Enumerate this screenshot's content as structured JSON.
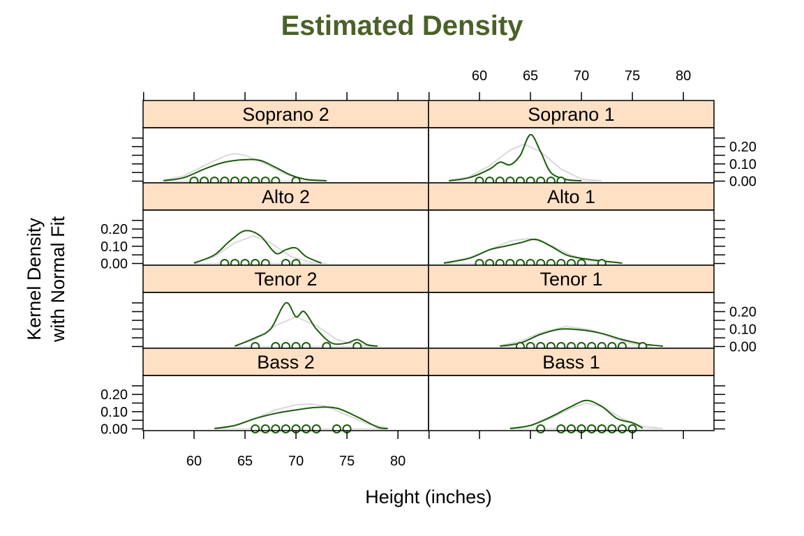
{
  "title": "Estimated Density",
  "xlabel": "Height (inches)",
  "ylabel_line1": "Kernel Density",
  "ylabel_line2": "with Normal Fit",
  "colors": {
    "title": "#4a6129",
    "density": "#1a5c0a",
    "normal": "#d9d9d9",
    "points": "#1a5c0a",
    "strip": "#ffe0c4"
  },
  "chart_data": {
    "type": "line",
    "title": "Estimated Density",
    "xlabel": "Height (inches)",
    "ylabel": "Kernel Density with Normal Fit",
    "xlim": [
      55,
      83
    ],
    "ylim": [
      0,
      0.3
    ],
    "x_ticks": [
      60,
      65,
      70,
      75,
      80
    ],
    "y_ticks": [
      0.0,
      0.1,
      0.2
    ],
    "y_tick_labels": [
      "0.00",
      "0.10",
      "0.20"
    ],
    "panels": [
      {
        "name": "Soprano 2",
        "points": [
          60,
          61,
          62,
          63,
          64,
          65,
          66,
          67,
          68,
          70
        ],
        "density": [
          [
            57,
            0.003
          ],
          [
            59,
            0.02
          ],
          [
            61,
            0.07
          ],
          [
            63,
            0.11
          ],
          [
            65,
            0.125
          ],
          [
            66.5,
            0.12
          ],
          [
            68,
            0.08
          ],
          [
            69.5,
            0.035
          ],
          [
            71,
            0.01
          ],
          [
            73,
            0.002
          ]
        ],
        "normal": [
          [
            57,
            0.006
          ],
          [
            59,
            0.03
          ],
          [
            61,
            0.09
          ],
          [
            63,
            0.145
          ],
          [
            64,
            0.16
          ],
          [
            65,
            0.15
          ],
          [
            67,
            0.1
          ],
          [
            69,
            0.04
          ],
          [
            71,
            0.01
          ],
          [
            73,
            0.002
          ]
        ]
      },
      {
        "name": "Soprano 1",
        "points": [
          60,
          61,
          62,
          63,
          64,
          65,
          66,
          67,
          68
        ],
        "density": [
          [
            57,
            0.002
          ],
          [
            59,
            0.02
          ],
          [
            61,
            0.07
          ],
          [
            62,
            0.11
          ],
          [
            63,
            0.095
          ],
          [
            64,
            0.15
          ],
          [
            65,
            0.27
          ],
          [
            66,
            0.17
          ],
          [
            67,
            0.05
          ],
          [
            68.5,
            0.01
          ],
          [
            70,
            0.002
          ]
        ],
        "normal": [
          [
            57,
            0.003
          ],
          [
            59,
            0.025
          ],
          [
            61,
            0.09
          ],
          [
            63,
            0.18
          ],
          [
            64.4,
            0.215
          ],
          [
            66,
            0.17
          ],
          [
            68,
            0.07
          ],
          [
            70,
            0.012
          ],
          [
            72,
            0.002
          ]
        ]
      },
      {
        "name": "Alto 2",
        "points": [
          63,
          64,
          65,
          66,
          67,
          69,
          70
        ],
        "density": [
          [
            60,
            0.002
          ],
          [
            62,
            0.05
          ],
          [
            63.5,
            0.13
          ],
          [
            65,
            0.19
          ],
          [
            66.5,
            0.16
          ],
          [
            68,
            0.06
          ],
          [
            69,
            0.08
          ],
          [
            70,
            0.09
          ],
          [
            71,
            0.04
          ],
          [
            72.5,
            0.002
          ]
        ],
        "normal": [
          [
            60,
            0.004
          ],
          [
            62,
            0.04
          ],
          [
            64,
            0.12
          ],
          [
            65.8,
            0.16
          ],
          [
            67.5,
            0.12
          ],
          [
            69.5,
            0.04
          ],
          [
            71.5,
            0.006
          ],
          [
            73,
            0.001
          ]
        ]
      },
      {
        "name": "Alto 1",
        "points": [
          60,
          61,
          62,
          63,
          64,
          65,
          66,
          67,
          68,
          69,
          70,
          72
        ],
        "density": [
          [
            56.5,
            0.002
          ],
          [
            59,
            0.03
          ],
          [
            61,
            0.08
          ],
          [
            62.5,
            0.1
          ],
          [
            64,
            0.12
          ],
          [
            65.5,
            0.14
          ],
          [
            67,
            0.1
          ],
          [
            68.5,
            0.05
          ],
          [
            70,
            0.03
          ],
          [
            72,
            0.015
          ],
          [
            74,
            0.002
          ]
        ],
        "normal": [
          [
            56.5,
            0.004
          ],
          [
            59,
            0.035
          ],
          [
            61,
            0.08
          ],
          [
            63,
            0.13
          ],
          [
            64.8,
            0.145
          ],
          [
            66.5,
            0.12
          ],
          [
            68.5,
            0.06
          ],
          [
            70.5,
            0.018
          ],
          [
            72.5,
            0.003
          ]
        ]
      },
      {
        "name": "Tenor 2",
        "points": [
          66,
          68,
          69,
          70,
          71,
          73,
          76
        ],
        "density": [
          [
            64,
            0.002
          ],
          [
            66,
            0.05
          ],
          [
            67.5,
            0.1
          ],
          [
            69,
            0.25
          ],
          [
            70,
            0.17
          ],
          [
            70.8,
            0.2
          ],
          [
            72,
            0.1
          ],
          [
            73.5,
            0.02
          ],
          [
            75,
            0.02
          ],
          [
            76,
            0.04
          ],
          [
            77,
            0.01
          ],
          [
            78,
            0.002
          ]
        ],
        "normal": [
          [
            64,
            0.006
          ],
          [
            66,
            0.04
          ],
          [
            68,
            0.12
          ],
          [
            70,
            0.17
          ],
          [
            72,
            0.12
          ],
          [
            74,
            0.04
          ],
          [
            76,
            0.008
          ],
          [
            78,
            0.001
          ]
        ]
      },
      {
        "name": "Tenor 1",
        "points": [
          64,
          65,
          66,
          67,
          68,
          69,
          70,
          71,
          72,
          73,
          74,
          76
        ],
        "density": [
          [
            62,
            0.002
          ],
          [
            64,
            0.02
          ],
          [
            66,
            0.07
          ],
          [
            68,
            0.1
          ],
          [
            70,
            0.095
          ],
          [
            72,
            0.075
          ],
          [
            74,
            0.04
          ],
          [
            76,
            0.015
          ],
          [
            78,
            0.002
          ]
        ],
        "normal": [
          [
            62,
            0.005
          ],
          [
            64,
            0.03
          ],
          [
            66,
            0.08
          ],
          [
            68.5,
            0.115
          ],
          [
            71,
            0.095
          ],
          [
            73,
            0.05
          ],
          [
            75,
            0.015
          ],
          [
            77,
            0.002
          ]
        ]
      },
      {
        "name": "Bass 2",
        "points": [
          66,
          67,
          68,
          69,
          70,
          71,
          72,
          74,
          75
        ],
        "density": [
          [
            62,
            0.002
          ],
          [
            64,
            0.02
          ],
          [
            66,
            0.06
          ],
          [
            68,
            0.09
          ],
          [
            70,
            0.11
          ],
          [
            72,
            0.125
          ],
          [
            74,
            0.12
          ],
          [
            76,
            0.07
          ],
          [
            78,
            0.01
          ],
          [
            79,
            0.002
          ]
        ],
        "normal": [
          [
            62,
            0.003
          ],
          [
            64,
            0.02
          ],
          [
            66,
            0.06
          ],
          [
            68,
            0.11
          ],
          [
            70,
            0.14
          ],
          [
            71.5,
            0.145
          ],
          [
            73,
            0.13
          ],
          [
            75,
            0.08
          ],
          [
            77,
            0.03
          ],
          [
            79,
            0.005
          ]
        ]
      },
      {
        "name": "Bass 1",
        "points": [
          66,
          68,
          69,
          70,
          71,
          72,
          73,
          74,
          75
        ],
        "density": [
          [
            63,
            0.002
          ],
          [
            65,
            0.02
          ],
          [
            67,
            0.07
          ],
          [
            69,
            0.13
          ],
          [
            70.5,
            0.165
          ],
          [
            72,
            0.13
          ],
          [
            73.5,
            0.06
          ],
          [
            75,
            0.035
          ],
          [
            76,
            0.005
          ]
        ],
        "normal": [
          [
            63,
            0.003
          ],
          [
            65,
            0.02
          ],
          [
            67,
            0.06
          ],
          [
            69,
            0.12
          ],
          [
            70.5,
            0.15
          ],
          [
            72,
            0.13
          ],
          [
            74,
            0.06
          ],
          [
            76,
            0.015
          ],
          [
            78,
            0.002
          ]
        ]
      }
    ]
  }
}
